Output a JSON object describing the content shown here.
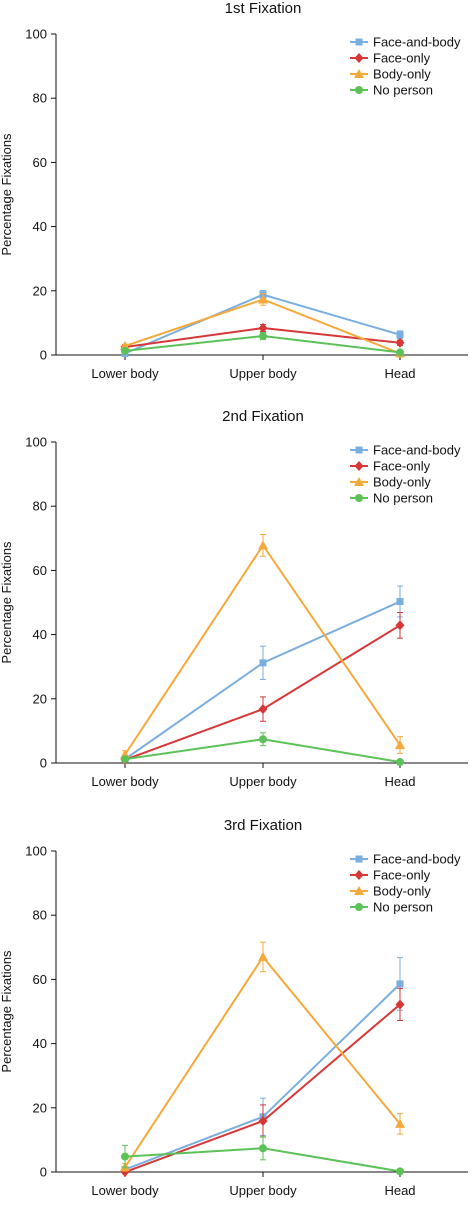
{
  "colors": {
    "Face-and-body": "#7aaee0",
    "Face-only": "#d63737",
    "Body-only": "#f5a93a",
    "No person": "#5cc258",
    "axis": "#111111"
  },
  "markers": {
    "Face-and-body": "square",
    "Face-only": "diamond",
    "Body-only": "triangle",
    "No person": "circle"
  },
  "chart_data": [
    {
      "type": "line",
      "title": "1st Fixation",
      "ylabel": "Percentage Fixations",
      "xlabel": "",
      "categories": [
        "Lower body",
        "Upper body",
        "Head"
      ],
      "ylim": [
        0,
        100
      ],
      "yticks": [
        "0",
        "20",
        "40",
        "60",
        "80",
        "100"
      ],
      "legend_position": "top-right",
      "series": [
        {
          "name": "Face-and-body",
          "values": [
            0.5,
            18.8,
            6.3
          ],
          "errors": [
            0.5,
            1.3,
            1.2
          ]
        },
        {
          "name": "Face-only",
          "values": [
            2.5,
            8.4,
            3.8
          ],
          "errors": [
            0.6,
            1.1,
            0.8
          ]
        },
        {
          "name": "Body-only",
          "values": [
            2.8,
            17.3,
            0.5
          ],
          "errors": [
            0.5,
            1.8,
            0.4
          ]
        },
        {
          "name": "No person",
          "values": [
            1.3,
            5.9,
            0.8
          ],
          "errors": [
            0.5,
            1.1,
            0.4
          ]
        }
      ]
    },
    {
      "type": "line",
      "title": "2nd Fixation",
      "ylabel": "Percentage Fixations",
      "xlabel": "",
      "categories": [
        "Lower body",
        "Upper body",
        "Head"
      ],
      "ylim": [
        0,
        100
      ],
      "yticks": [
        "0",
        "20",
        "40",
        "60",
        "80",
        "100"
      ],
      "legend_position": "top-right",
      "series": [
        {
          "name": "Face-and-body",
          "values": [
            1.2,
            31.2,
            50.3
          ],
          "errors": [
            0.8,
            5.2,
            4.8
          ]
        },
        {
          "name": "Face-only",
          "values": [
            1.0,
            16.8,
            42.9
          ],
          "errors": [
            0.8,
            3.8,
            4.0
          ]
        },
        {
          "name": "Body-only",
          "values": [
            2.6,
            67.8,
            5.6
          ],
          "errors": [
            1.2,
            3.4,
            2.6
          ]
        },
        {
          "name": "No person",
          "values": [
            1.2,
            7.4,
            0.3
          ],
          "errors": [
            0.8,
            2.0,
            0.3
          ]
        }
      ]
    },
    {
      "type": "line",
      "title": "3rd Fixation",
      "ylabel": "Percentage Fixations",
      "xlabel": "",
      "categories": [
        "Lower body",
        "Upper body",
        "Head"
      ],
      "ylim": [
        0,
        100
      ],
      "yticks": [
        "0",
        "20",
        "40",
        "60",
        "80",
        "100"
      ],
      "legend_position": "top-right",
      "series": [
        {
          "name": "Face-and-body",
          "values": [
            0.8,
            17.2,
            58.6
          ],
          "errors": [
            0.8,
            5.8,
            8.2
          ]
        },
        {
          "name": "Face-only",
          "values": [
            0.0,
            15.9,
            52.2
          ],
          "errors": [
            0.5,
            5.0,
            5.0
          ]
        },
        {
          "name": "Body-only",
          "values": [
            1.5,
            67.0,
            15.0
          ],
          "errors": [
            1.2,
            4.6,
            3.2
          ]
        },
        {
          "name": "No person",
          "values": [
            4.8,
            7.4,
            0.2
          ],
          "errors": [
            3.5,
            3.6,
            0.3
          ]
        }
      ]
    }
  ]
}
